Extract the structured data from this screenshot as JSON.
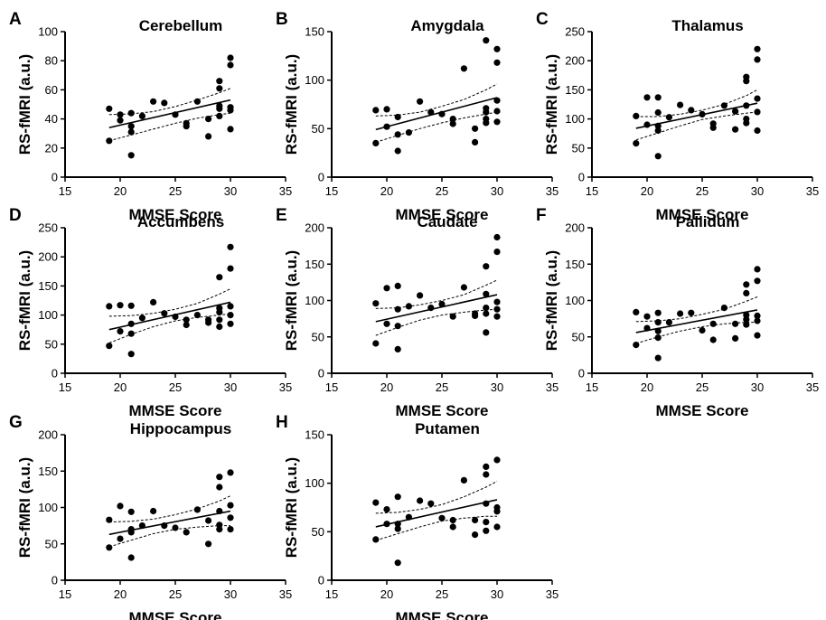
{
  "figure": {
    "panels": [
      {
        "letter": "A",
        "title": "Cerebellum"
      },
      {
        "letter": "B",
        "title": "Amygdala"
      },
      {
        "letter": "C",
        "title": "Thalamus"
      },
      {
        "letter": "D",
        "title": "Accumbens"
      },
      {
        "letter": "E",
        "title": "Caudate"
      },
      {
        "letter": "F",
        "title": "Pallidum"
      },
      {
        "letter": "G",
        "title": "Hippocampus"
      },
      {
        "letter": "H",
        "title": "Putamen"
      }
    ]
  },
  "chart_data": [
    {
      "type": "scatter",
      "panel": "A",
      "title": "Cerebellum",
      "xlabel": "MMSE Score",
      "ylabel": "RS-fMRI (a.u.)",
      "xlim": [
        15,
        35
      ],
      "ylim": [
        0,
        100
      ],
      "xticks": [
        15,
        20,
        25,
        30,
        35
      ],
      "yticks": [
        0,
        20,
        40,
        60,
        80,
        100
      ],
      "points": [
        [
          19,
          47
        ],
        [
          19,
          25
        ],
        [
          20,
          43
        ],
        [
          20,
          39
        ],
        [
          21,
          44
        ],
        [
          21,
          35
        ],
        [
          21,
          31
        ],
        [
          21,
          15
        ],
        [
          22,
          42
        ],
        [
          23,
          52
        ],
        [
          24,
          51
        ],
        [
          25,
          43
        ],
        [
          26,
          37
        ],
        [
          26,
          35
        ],
        [
          27,
          52
        ],
        [
          28,
          40
        ],
        [
          28,
          28
        ],
        [
          29,
          66
        ],
        [
          29,
          61
        ],
        [
          29,
          47
        ],
        [
          29,
          42
        ],
        [
          29,
          49
        ],
        [
          30,
          82
        ],
        [
          30,
          77
        ],
        [
          30,
          48
        ],
        [
          30,
          46
        ],
        [
          30,
          33
        ]
      ],
      "fit": {
        "x": [
          19,
          30
        ],
        "y": [
          34,
          53
        ]
      },
      "ci_upper": {
        "x": [
          19,
          21,
          23,
          25,
          27,
          29,
          30
        ],
        "y": [
          43,
          43.5,
          45,
          48.5,
          53,
          58,
          61
        ]
      },
      "ci_lower": {
        "x": [
          19,
          21,
          23,
          25,
          27,
          29,
          30
        ],
        "y": [
          25,
          29,
          33,
          37,
          40.5,
          43,
          44
        ]
      }
    },
    {
      "type": "scatter",
      "panel": "B",
      "title": "Amygdala",
      "xlabel": "MMSE Score",
      "ylabel": "RS-fMRI (a.u.)",
      "xlim": [
        15,
        35
      ],
      "ylim": [
        0,
        150
      ],
      "xticks": [
        15,
        20,
        25,
        30,
        35
      ],
      "yticks": [
        0,
        50,
        100,
        150
      ],
      "points": [
        [
          19,
          69
        ],
        [
          19,
          35
        ],
        [
          20,
          70
        ],
        [
          20,
          52
        ],
        [
          21,
          62
        ],
        [
          21,
          44
        ],
        [
          21,
          27
        ],
        [
          22,
          46
        ],
        [
          23,
          78
        ],
        [
          24,
          67
        ],
        [
          25,
          65
        ],
        [
          26,
          60
        ],
        [
          26,
          55
        ],
        [
          27,
          112
        ],
        [
          28,
          50
        ],
        [
          28,
          36
        ],
        [
          29,
          141
        ],
        [
          29,
          71
        ],
        [
          29,
          67
        ],
        [
          29,
          60
        ],
        [
          29,
          56
        ],
        [
          30,
          132
        ],
        [
          30,
          118
        ],
        [
          30,
          79
        ],
        [
          30,
          68
        ],
        [
          30,
          57
        ]
      ],
      "fit": {
        "x": [
          19,
          30
        ],
        "y": [
          49,
          82
        ]
      },
      "ci_upper": {
        "x": [
          19,
          21,
          23,
          25,
          27,
          29,
          30
        ],
        "y": [
          63,
          64,
          67,
          73,
          80,
          90,
          96
        ]
      },
      "ci_lower": {
        "x": [
          19,
          21,
          23,
          25,
          27,
          29,
          30
        ],
        "y": [
          36,
          43,
          50,
          56,
          61,
          65,
          67
        ]
      }
    },
    {
      "type": "scatter",
      "panel": "C",
      "title": "Thalamus",
      "xlabel": "MMSE Score",
      "ylabel": "RS-fMRI (a.u.)",
      "xlim": [
        15,
        35
      ],
      "ylim": [
        0,
        250
      ],
      "xticks": [
        15,
        20,
        25,
        30,
        35
      ],
      "yticks": [
        0,
        50,
        100,
        150,
        200,
        250
      ],
      "points": [
        [
          19,
          105
        ],
        [
          19,
          58
        ],
        [
          20,
          137
        ],
        [
          20,
          90
        ],
        [
          21,
          137
        ],
        [
          21,
          111
        ],
        [
          21,
          88
        ],
        [
          21,
          80
        ],
        [
          21,
          36
        ],
        [
          22,
          103
        ],
        [
          23,
          124
        ],
        [
          24,
          115
        ],
        [
          25,
          108
        ],
        [
          26,
          92
        ],
        [
          26,
          85
        ],
        [
          27,
          123
        ],
        [
          28,
          113
        ],
        [
          28,
          82
        ],
        [
          29,
          172
        ],
        [
          29,
          165
        ],
        [
          29,
          123
        ],
        [
          29,
          100
        ],
        [
          29,
          93
        ],
        [
          30,
          220
        ],
        [
          30,
          202
        ],
        [
          30,
          135
        ],
        [
          30,
          112
        ],
        [
          30,
          80
        ]
      ],
      "fit": {
        "x": [
          19,
          30
        ],
        "y": [
          84,
          127
        ]
      },
      "ci_upper": {
        "x": [
          19,
          21,
          23,
          25,
          27,
          29,
          30
        ],
        "y": [
          104,
          104,
          108,
          115,
          125,
          140,
          150
        ]
      },
      "ci_lower": {
        "x": [
          19,
          21,
          23,
          25,
          27,
          29,
          30
        ],
        "y": [
          64,
          76,
          88,
          99,
          105,
          110,
          112
        ]
      }
    },
    {
      "type": "scatter",
      "panel": "D",
      "title": "Accumbens",
      "xlabel": "MMSE Score",
      "ylabel": "RS-fMRI (a.u.)",
      "xlim": [
        15,
        35
      ],
      "ylim": [
        0,
        250
      ],
      "xticks": [
        15,
        20,
        25,
        30,
        35
      ],
      "yticks": [
        0,
        50,
        100,
        150,
        200,
        250
      ],
      "points": [
        [
          19,
          115
        ],
        [
          19,
          47
        ],
        [
          20,
          117
        ],
        [
          20,
          72
        ],
        [
          21,
          116
        ],
        [
          21,
          85
        ],
        [
          21,
          68
        ],
        [
          21,
          33
        ],
        [
          22,
          95
        ],
        [
          23,
          122
        ],
        [
          24,
          103
        ],
        [
          25,
          97
        ],
        [
          26,
          92
        ],
        [
          26,
          83
        ],
        [
          27,
          100
        ],
        [
          28,
          92
        ],
        [
          28,
          87
        ],
        [
          29,
          165
        ],
        [
          29,
          112
        ],
        [
          29,
          105
        ],
        [
          29,
          92
        ],
        [
          29,
          80
        ],
        [
          30,
          217
        ],
        [
          30,
          180
        ],
        [
          30,
          115
        ],
        [
          30,
          100
        ],
        [
          30,
          85
        ]
      ],
      "fit": {
        "x": [
          19,
          30
        ],
        "y": [
          75,
          122
        ]
      },
      "ci_upper": {
        "x": [
          19,
          21,
          23,
          25,
          27,
          29,
          30
        ],
        "y": [
          98,
          99,
          103,
          110,
          120,
          136,
          145
        ]
      },
      "ci_lower": {
        "x": [
          19,
          21,
          23,
          25,
          27,
          29,
          30
        ],
        "y": [
          52,
          67,
          80,
          90,
          96,
          100,
          102
        ]
      }
    },
    {
      "type": "scatter",
      "panel": "E",
      "title": "Caudate",
      "xlabel": "MMSE Score",
      "ylabel": "RS-fMRI (a.u.)",
      "xlim": [
        15,
        35
      ],
      "ylim": [
        0,
        200
      ],
      "xticks": [
        15,
        20,
        25,
        30,
        35
      ],
      "yticks": [
        0,
        50,
        100,
        150,
        200
      ],
      "points": [
        [
          19,
          96
        ],
        [
          19,
          41
        ],
        [
          20,
          117
        ],
        [
          20,
          68
        ],
        [
          21,
          120
        ],
        [
          21,
          88
        ],
        [
          21,
          65
        ],
        [
          21,
          33
        ],
        [
          22,
          92
        ],
        [
          23,
          107
        ],
        [
          24,
          90
        ],
        [
          25,
          95
        ],
        [
          26,
          78
        ],
        [
          27,
          118
        ],
        [
          28,
          82
        ],
        [
          28,
          79
        ],
        [
          29,
          147
        ],
        [
          29,
          109
        ],
        [
          29,
          90
        ],
        [
          29,
          82
        ],
        [
          29,
          56
        ],
        [
          30,
          187
        ],
        [
          30,
          167
        ],
        [
          30,
          98
        ],
        [
          30,
          88
        ],
        [
          30,
          78
        ]
      ],
      "fit": {
        "x": [
          19,
          30
        ],
        "y": [
          71,
          108
        ]
      },
      "ci_upper": {
        "x": [
          19,
          21,
          23,
          25,
          27,
          29,
          30
        ],
        "y": [
          89,
          90,
          94,
          100,
          108,
          121,
          128
        ]
      },
      "ci_lower": {
        "x": [
          19,
          21,
          23,
          25,
          27,
          29,
          30
        ],
        "y": [
          52,
          63,
          73,
          80,
          84,
          87,
          88
        ]
      }
    },
    {
      "type": "scatter",
      "panel": "F",
      "title": "Pallidum",
      "xlabel": "MMSE Score",
      "ylabel": "RS-fMRI (a.u.)",
      "xlim": [
        15,
        35
      ],
      "ylim": [
        0,
        200
      ],
      "xticks": [
        15,
        20,
        25,
        30,
        35
      ],
      "yticks": [
        0,
        50,
        100,
        150,
        200
      ],
      "points": [
        [
          19,
          84
        ],
        [
          19,
          39
        ],
        [
          20,
          78
        ],
        [
          20,
          62
        ],
        [
          21,
          83
        ],
        [
          21,
          70
        ],
        [
          21,
          58
        ],
        [
          21,
          49
        ],
        [
          21,
          21
        ],
        [
          22,
          70
        ],
        [
          23,
          82
        ],
        [
          24,
          83
        ],
        [
          25,
          59
        ],
        [
          26,
          68
        ],
        [
          26,
          46
        ],
        [
          27,
          90
        ],
        [
          28,
          68
        ],
        [
          28,
          48
        ],
        [
          29,
          122
        ],
        [
          29,
          110
        ],
        [
          29,
          80
        ],
        [
          29,
          74
        ],
        [
          29,
          67
        ],
        [
          30,
          143
        ],
        [
          30,
          127
        ],
        [
          30,
          79
        ],
        [
          30,
          72
        ],
        [
          30,
          52
        ]
      ],
      "fit": {
        "x": [
          19,
          30
        ],
        "y": [
          56,
          87
        ]
      },
      "ci_upper": {
        "x": [
          19,
          21,
          23,
          25,
          27,
          29,
          30
        ],
        "y": [
          71,
          72,
          75,
          81,
          88,
          99,
          105
        ]
      },
      "ci_lower": {
        "x": [
          19,
          21,
          23,
          25,
          27,
          29,
          30
        ],
        "y": [
          41,
          50,
          58,
          64,
          68,
          70,
          70
        ]
      }
    },
    {
      "type": "scatter",
      "panel": "G",
      "title": "Hippocampus",
      "xlabel": "MMSE Score",
      "ylabel": "RS-fMRI (a.u.)",
      "xlim": [
        15,
        35
      ],
      "ylim": [
        0,
        200
      ],
      "xticks": [
        15,
        20,
        25,
        30,
        35
      ],
      "yticks": [
        0,
        50,
        100,
        150,
        200
      ],
      "points": [
        [
          19,
          83
        ],
        [
          19,
          45
        ],
        [
          20,
          102
        ],
        [
          20,
          57
        ],
        [
          21,
          94
        ],
        [
          21,
          70
        ],
        [
          21,
          66
        ],
        [
          21,
          31
        ],
        [
          22,
          75
        ],
        [
          23,
          95
        ],
        [
          24,
          75
        ],
        [
          25,
          72
        ],
        [
          26,
          66
        ],
        [
          27,
          97
        ],
        [
          28,
          82
        ],
        [
          28,
          50
        ],
        [
          29,
          142
        ],
        [
          29,
          128
        ],
        [
          29,
          95
        ],
        [
          29,
          76
        ],
        [
          29,
          70
        ],
        [
          30,
          148
        ],
        [
          30,
          103
        ],
        [
          30,
          86
        ],
        [
          30,
          70
        ]
      ],
      "fit": {
        "x": [
          19,
          30
        ],
        "y": [
          63,
          95
        ]
      },
      "ci_upper": {
        "x": [
          19,
          21,
          23,
          25,
          27,
          29,
          30
        ],
        "y": [
          80,
          81,
          84,
          90,
          98,
          109,
          116
        ]
      },
      "ci_lower": {
        "x": [
          19,
          21,
          23,
          25,
          27,
          29,
          30
        ],
        "y": [
          46,
          55,
          64,
          70,
          73,
          75,
          75
        ]
      }
    },
    {
      "type": "scatter",
      "panel": "H",
      "title": "Putamen",
      "xlabel": "MMSE Score",
      "ylabel": "RS-fMRI (a.u.)",
      "xlim": [
        15,
        35
      ],
      "ylim": [
        0,
        150
      ],
      "xticks": [
        15,
        20,
        25,
        30,
        35
      ],
      "yticks": [
        0,
        50,
        100,
        150
      ],
      "points": [
        [
          19,
          80
        ],
        [
          19,
          42
        ],
        [
          20,
          73
        ],
        [
          20,
          58
        ],
        [
          21,
          86
        ],
        [
          21,
          58
        ],
        [
          21,
          53
        ],
        [
          21,
          18
        ],
        [
          22,
          65
        ],
        [
          23,
          82
        ],
        [
          24,
          79
        ],
        [
          25,
          64
        ],
        [
          26,
          62
        ],
        [
          26,
          55
        ],
        [
          27,
          103
        ],
        [
          28,
          62
        ],
        [
          28,
          47
        ],
        [
          29,
          117
        ],
        [
          29,
          109
        ],
        [
          29,
          79
        ],
        [
          29,
          60
        ],
        [
          29,
          51
        ],
        [
          30,
          124
        ],
        [
          30,
          75
        ],
        [
          30,
          71
        ],
        [
          30,
          55
        ]
      ],
      "fit": {
        "x": [
          19,
          30
        ],
        "y": [
          55,
          83
        ]
      },
      "ci_upper": {
        "x": [
          19,
          21,
          23,
          25,
          27,
          29,
          30
        ],
        "y": [
          69,
          70,
          73,
          78,
          86,
          96,
          102
        ]
      },
      "ci_lower": {
        "x": [
          19,
          21,
          23,
          25,
          27,
          29,
          30
        ],
        "y": [
          41,
          48,
          55,
          61,
          64,
          66,
          66
        ]
      }
    }
  ]
}
